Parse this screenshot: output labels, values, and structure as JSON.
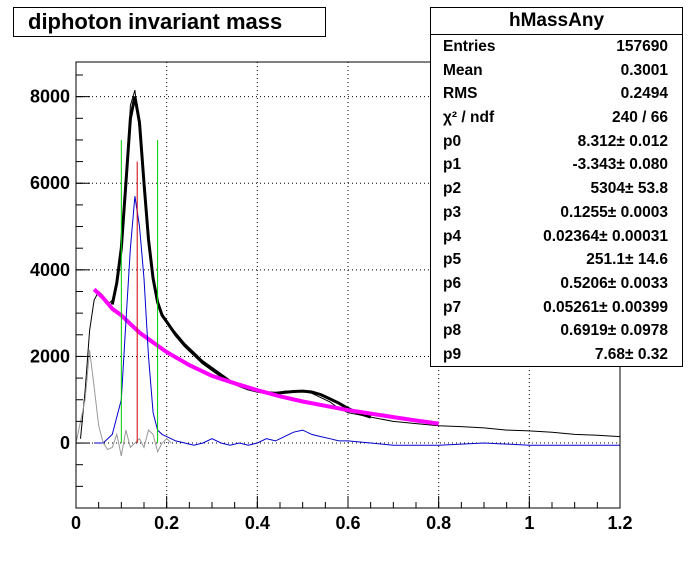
{
  "chart_data": {
    "type": "line",
    "title": "diphoton invariant mass",
    "xlabel": "",
    "ylabel": "",
    "xlim": [
      0,
      1.2
    ],
    "ylim": [
      -1500,
      8800
    ],
    "x_ticks": [
      "0",
      "0.2",
      "0.4",
      "0.6",
      "0.8",
      "1",
      "1.2"
    ],
    "y_ticks": [
      "0",
      "2000",
      "4000",
      "6000",
      "8000"
    ],
    "grid": true,
    "series": [
      {
        "role": "data-histogram",
        "color": "#000000",
        "x": [
          0.01,
          0.02,
          0.03,
          0.04,
          0.05,
          0.06,
          0.07,
          0.08,
          0.09,
          0.1,
          0.11,
          0.12,
          0.13,
          0.14,
          0.15,
          0.16,
          0.17,
          0.18,
          0.19,
          0.2,
          0.22,
          0.24,
          0.26,
          0.28,
          0.3,
          0.32,
          0.34,
          0.36,
          0.38,
          0.4,
          0.42,
          0.44,
          0.46,
          0.48,
          0.5,
          0.52,
          0.54,
          0.56,
          0.58,
          0.6,
          0.65,
          0.7,
          0.75,
          0.8,
          0.85,
          0.9,
          0.95,
          1.0,
          1.05,
          1.1,
          1.15,
          1.2
        ],
        "y": [
          100,
          1200,
          2600,
          3300,
          3500,
          3400,
          3200,
          3300,
          3700,
          4400,
          6000,
          7800,
          8150,
          7200,
          5800,
          4600,
          3800,
          3300,
          3000,
          2800,
          2550,
          2300,
          2100,
          1900,
          1750,
          1600,
          1450,
          1350,
          1250,
          1200,
          1150,
          1150,
          1200,
          1200,
          1200,
          1150,
          1050,
          950,
          800,
          700,
          600,
          500,
          450,
          400,
          380,
          350,
          300,
          280,
          250,
          200,
          180,
          150
        ]
      },
      {
        "role": "fit",
        "color": "#000000",
        "x": [
          0.08,
          0.09,
          0.1,
          0.11,
          0.12,
          0.13,
          0.14,
          0.15,
          0.16,
          0.17,
          0.18,
          0.19,
          0.2,
          0.22,
          0.24,
          0.26,
          0.28,
          0.3,
          0.32,
          0.34,
          0.36,
          0.38,
          0.4,
          0.42,
          0.44,
          0.46,
          0.48,
          0.5,
          0.52,
          0.54,
          0.56,
          0.58,
          0.6,
          0.62,
          0.65
        ],
        "y": [
          3200,
          3700,
          4500,
          6000,
          7500,
          8000,
          7400,
          6000,
          4700,
          3800,
          3250,
          2950,
          2800,
          2500,
          2250,
          2050,
          1850,
          1700,
          1550,
          1420,
          1330,
          1250,
          1200,
          1160,
          1150,
          1170,
          1190,
          1200,
          1180,
          1120,
          1020,
          920,
          800,
          700,
          600
        ]
      },
      {
        "role": "background",
        "color": "#ff00ff",
        "x": [
          0.04,
          0.06,
          0.08,
          0.1,
          0.12,
          0.14,
          0.16,
          0.18,
          0.2,
          0.25,
          0.3,
          0.35,
          0.4,
          0.45,
          0.5,
          0.55,
          0.6,
          0.65,
          0.7,
          0.75,
          0.8
        ],
        "y": [
          3550,
          3350,
          3100,
          2950,
          2750,
          2550,
          2400,
          2250,
          2100,
          1800,
          1550,
          1380,
          1220,
          1080,
          960,
          860,
          760,
          680,
          600,
          520,
          450
        ]
      },
      {
        "role": "signal-subtracted",
        "color": "#0000cc",
        "x": [
          0.04,
          0.06,
          0.08,
          0.1,
          0.11,
          0.12,
          0.13,
          0.14,
          0.15,
          0.16,
          0.17,
          0.18,
          0.19,
          0.2,
          0.22,
          0.24,
          0.26,
          0.28,
          0.3,
          0.32,
          0.34,
          0.36,
          0.38,
          0.4,
          0.42,
          0.44,
          0.46,
          0.48,
          0.5,
          0.52,
          0.54,
          0.56,
          0.58,
          0.6,
          0.65,
          0.7,
          0.8,
          0.9,
          1.0,
          1.1,
          1.2
        ],
        "y": [
          0,
          0,
          200,
          1000,
          2800,
          4500,
          5700,
          5000,
          3800,
          2000,
          700,
          300,
          200,
          150,
          50,
          0,
          -50,
          0,
          100,
          0,
          -50,
          0,
          -50,
          0,
          100,
          50,
          150,
          250,
          300,
          200,
          150,
          100,
          50,
          50,
          0,
          -50,
          -50,
          0,
          -50,
          -50,
          -50
        ]
      },
      {
        "role": "auxiliary",
        "color": "#999999",
        "x": [
          0.0,
          0.02,
          0.03,
          0.04,
          0.05,
          0.06,
          0.07,
          0.08,
          0.09,
          0.1,
          0.11,
          0.12,
          0.13,
          0.14,
          0.15,
          0.16,
          0.17,
          0.18,
          0.19,
          0.2,
          0.21
        ],
        "y": [
          0,
          1000,
          2150,
          1300,
          400,
          0,
          -150,
          -100,
          200,
          -300,
          300,
          -100,
          0,
          100,
          -100,
          300,
          200,
          -200,
          0,
          100,
          0
        ]
      }
    ],
    "markers": [
      {
        "x": 0.1,
        "ymax": 7000,
        "color": "#00cc00"
      },
      {
        "x": 0.135,
        "ymax": 6500,
        "color": "#cc0000"
      },
      {
        "x": 0.18,
        "ymax": 7000,
        "color": "#00cc00"
      }
    ],
    "stats": {
      "name": "hMassAny",
      "rows": [
        {
          "label": "Entries",
          "value": "157690"
        },
        {
          "label": "Mean",
          "value": "0.3001"
        },
        {
          "label": "RMS",
          "value": "0.2494"
        },
        {
          "label": "χ² / ndf",
          "value": "240 / 66"
        },
        {
          "label": "p0",
          "value": "8.312± 0.012"
        },
        {
          "label": "p1",
          "value": "-3.343± 0.080"
        },
        {
          "label": "p2",
          "value": "5304± 53.8"
        },
        {
          "label": "p3",
          "value": "0.1255± 0.0003"
        },
        {
          "label": "p4",
          "value": "0.02364± 0.00031"
        },
        {
          "label": "p5",
          "value": "251.1± 14.6"
        },
        {
          "label": "p6",
          "value": "0.5206± 0.0033"
        },
        {
          "label": "p7",
          "value": "0.05261± 0.00399"
        },
        {
          "label": "p8",
          "value": "0.6919± 0.0978"
        },
        {
          "label": "p9",
          "value": "7.68± 0.32"
        }
      ]
    }
  }
}
